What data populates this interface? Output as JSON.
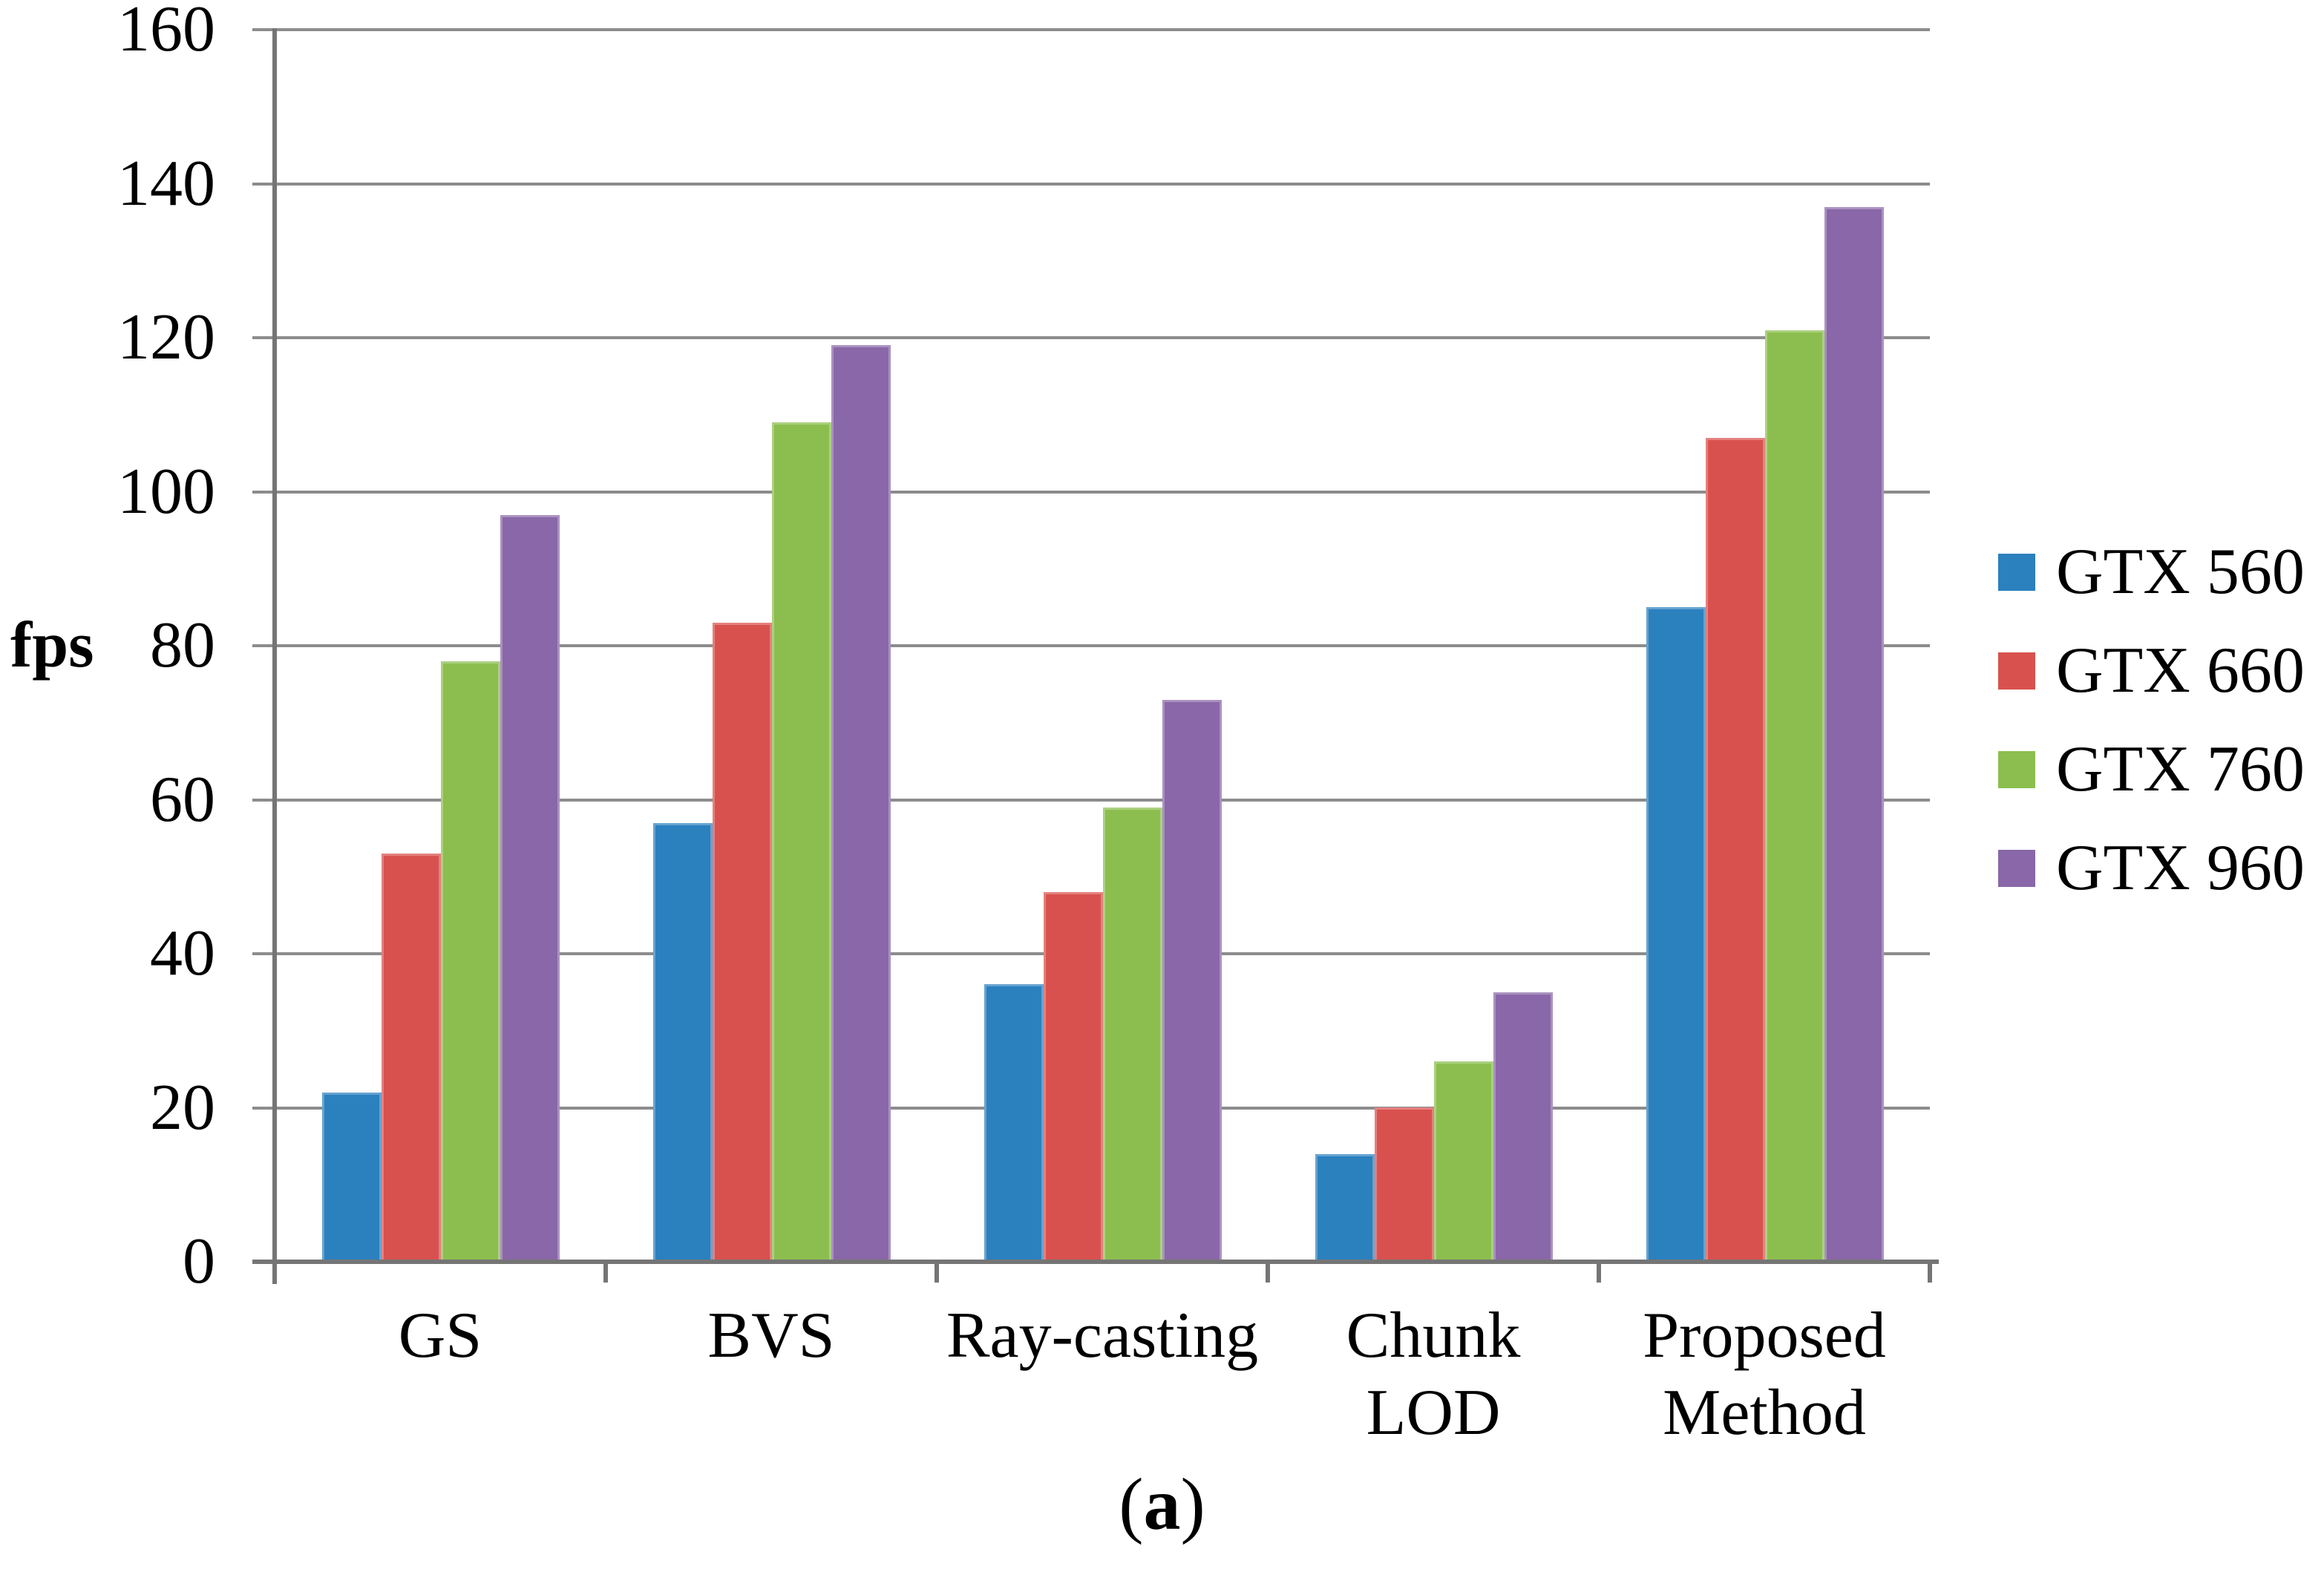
{
  "figure": {
    "caption": {
      "open": "(",
      "letter": "a",
      "close": ")"
    }
  },
  "chart_data": {
    "type": "bar",
    "title": "",
    "xlabel": "",
    "ylabel": "fps",
    "ylim": [
      0,
      160
    ],
    "ytick_step": 20,
    "yticks": [
      0,
      20,
      40,
      60,
      80,
      100,
      120,
      140,
      160
    ],
    "grid": true,
    "legend_position": "right",
    "categories": [
      "GS",
      "BVS",
      "Ray-casting",
      "Chunk\nLOD",
      "Proposed\nMethod"
    ],
    "series": [
      {
        "name": "GTX 560",
        "color": "#2B80BE",
        "values": [
          22,
          57,
          36,
          14,
          85
        ]
      },
      {
        "name": "GTX 660",
        "color": "#D9514E",
        "values": [
          53,
          83,
          48,
          20,
          107
        ]
      },
      {
        "name": "GTX 760",
        "color": "#8CBE4F",
        "values": [
          78,
          109,
          59,
          26,
          121
        ]
      },
      {
        "name": "GTX 960",
        "color": "#8967A8",
        "values": [
          97,
          119,
          73,
          35,
          137
        ]
      }
    ],
    "gridline_color": "#8c8c8c",
    "axis_color": "#757575",
    "text_color": "#000000"
  }
}
